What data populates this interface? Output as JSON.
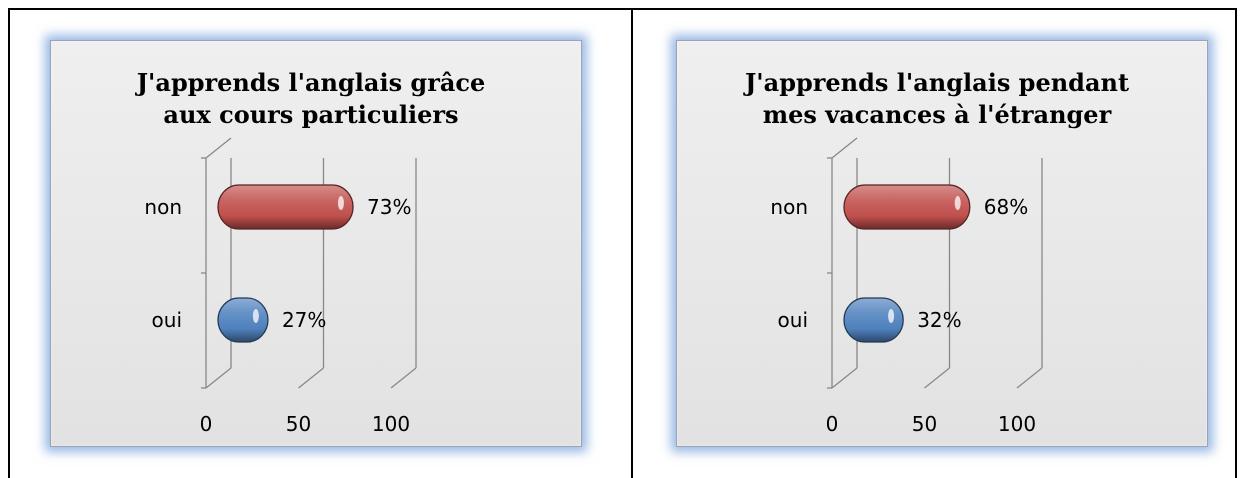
{
  "colors": {
    "non": "#c0504d",
    "oui": "#4f81bd"
  },
  "chart_data": [
    {
      "type": "bar",
      "orientation": "horizontal",
      "title": "J'apprends l'anglais grâce aux cours particuliers",
      "title_lines": [
        "J'apprends l'anglais grâce",
        "aux cours particuliers"
      ],
      "categories": [
        "non",
        "oui"
      ],
      "values": [
        73,
        27
      ],
      "value_labels": [
        "73%",
        "27%"
      ],
      "xlim": [
        0,
        100
      ],
      "xticks": [
        "0",
        "50",
        "100"
      ],
      "grid": true,
      "style": "3d-cylinder"
    },
    {
      "type": "bar",
      "orientation": "horizontal",
      "title": "J'apprends l'anglais pendant mes vacances à l'étranger",
      "title_lines": [
        "J'apprends l'anglais pendant",
        "mes vacances à l'étranger"
      ],
      "categories": [
        "non",
        "oui"
      ],
      "values": [
        68,
        32
      ],
      "value_labels": [
        "68%",
        "32%"
      ],
      "xlim": [
        0,
        100
      ],
      "xticks": [
        "0",
        "50",
        "100"
      ],
      "grid": true,
      "style": "3d-cylinder"
    }
  ]
}
